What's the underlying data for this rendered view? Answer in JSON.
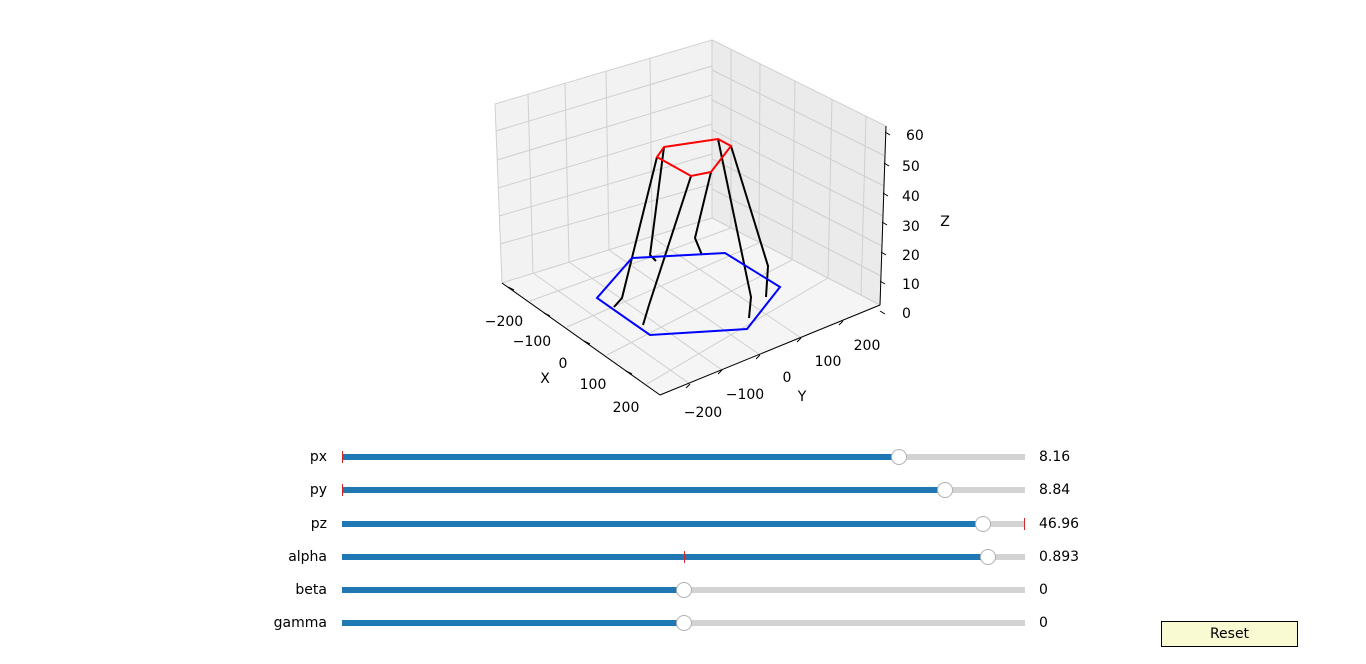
{
  "plot": {
    "axes": {
      "x": {
        "label": "X",
        "ticks": [
          "−200",
          "−100",
          "0",
          "100",
          "200"
        ]
      },
      "y": {
        "label": "Y",
        "ticks": [
          "−200",
          "−100",
          "0",
          "100",
          "200"
        ]
      },
      "z": {
        "label": "Z",
        "ticks": [
          "0",
          "10",
          "20",
          "30",
          "40",
          "50",
          "60"
        ]
      }
    },
    "colors": {
      "base": "#0000ff",
      "platform": "#ff0000",
      "legs": "#000000"
    }
  },
  "sliders": [
    {
      "label": "px",
      "value": "8.16",
      "fraction": 0.815,
      "initial_fraction": 0.0
    },
    {
      "label": "py",
      "value": "8.84",
      "fraction": 0.883,
      "initial_fraction": 0.0
    },
    {
      "label": "pz",
      "value": "46.96",
      "fraction": 0.939,
      "initial_fraction": 1.0
    },
    {
      "label": "alpha",
      "value": "0.893",
      "fraction": 0.946,
      "initial_fraction": 0.5
    },
    {
      "label": "beta",
      "value": "0",
      "fraction": 0.5,
      "initial_fraction": 0.5
    },
    {
      "label": "gamma",
      "value": "0",
      "fraction": 0.5,
      "initial_fraction": 0.5
    }
  ],
  "reset_label": "Reset"
}
